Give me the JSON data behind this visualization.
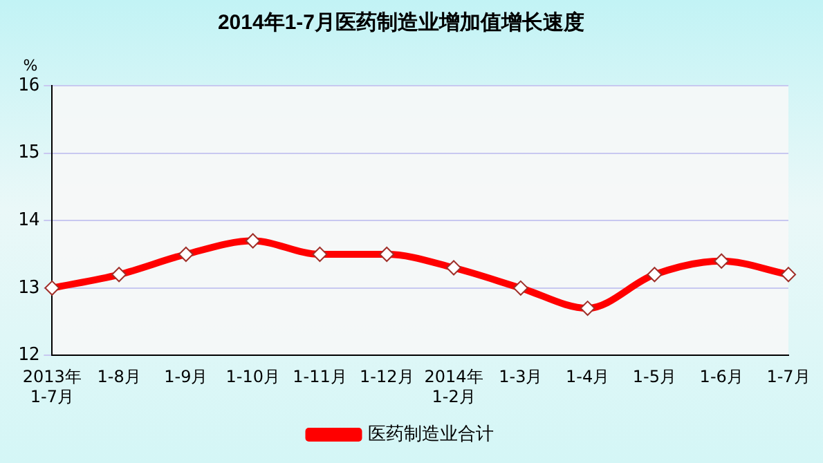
{
  "chart_data": {
    "type": "line",
    "title": "2014年1-7月医药制造业增加值增长速度",
    "ylabel": "%",
    "categories": [
      "2013年\n1-7月",
      "1-8月",
      "1-9月",
      "1-10月",
      "1-11月",
      "1-12月",
      "2014年\n1-2月",
      "1-3月",
      "1-4月",
      "1-5月",
      "1-6月",
      "1-7月"
    ],
    "series": [
      {
        "name": "医药制造业合计",
        "color": "#ff0000",
        "values": [
          13.0,
          13.2,
          13.5,
          13.7,
          13.5,
          13.5,
          13.3,
          13.0,
          12.7,
          13.2,
          13.4,
          13.2
        ]
      }
    ],
    "ylim": [
      12,
      16
    ],
    "yticks": [
      12,
      13,
      14,
      15,
      16
    ],
    "grid": "y",
    "legend": "bottom",
    "marker": "diamond"
  }
}
